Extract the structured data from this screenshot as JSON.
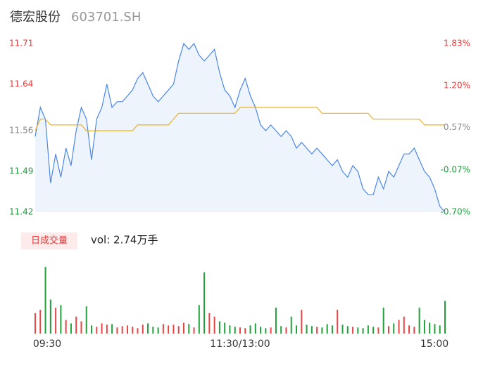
{
  "chart_data": {
    "type": "line",
    "title": "德宏股份",
    "subtitle": "603701.SH",
    "x": [
      0,
      3,
      6,
      9,
      12,
      15,
      18,
      21,
      24,
      27,
      30,
      33,
      36,
      39,
      42,
      45,
      48,
      51,
      54,
      57,
      60,
      63,
      66,
      69,
      72,
      75,
      78,
      81,
      84,
      87,
      90,
      93,
      96,
      99,
      102,
      105,
      108,
      111,
      114,
      117,
      120,
      123,
      126,
      129,
      132,
      135,
      138,
      141,
      144,
      147,
      150,
      153,
      156,
      159,
      162,
      165,
      168,
      171,
      174,
      177,
      180,
      183,
      186,
      189,
      192,
      195,
      198,
      201,
      204,
      207,
      210,
      213,
      216,
      219,
      222,
      225,
      228,
      231,
      234,
      237,
      240
    ],
    "xlim": [
      0,
      240
    ],
    "xticks": [
      {
        "value": 0,
        "label": "09:30"
      },
      {
        "value": 120,
        "label": "11:30/13:00"
      },
      {
        "value": 240,
        "label": "15:00"
      }
    ],
    "series": [
      {
        "color": "#4a86e8",
        "fill": "#eef4fc",
        "values": [
          11.55,
          11.6,
          11.58,
          11.47,
          11.52,
          11.48,
          11.53,
          11.5,
          11.56,
          11.6,
          11.58,
          11.51,
          11.58,
          11.6,
          11.64,
          11.6,
          11.61,
          11.61,
          11.62,
          11.63,
          11.65,
          11.66,
          11.64,
          11.62,
          11.61,
          11.62,
          11.63,
          11.64,
          11.68,
          11.71,
          11.7,
          11.71,
          11.69,
          11.68,
          11.69,
          11.7,
          11.66,
          11.63,
          11.62,
          11.6,
          11.63,
          11.65,
          11.62,
          11.6,
          11.57,
          11.56,
          11.57,
          11.56,
          11.55,
          11.56,
          11.55,
          11.53,
          11.54,
          11.53,
          11.52,
          11.53,
          11.52,
          11.51,
          11.5,
          11.51,
          11.49,
          11.48,
          11.5,
          11.49,
          11.46,
          11.45,
          11.45,
          11.48,
          11.46,
          11.49,
          11.48,
          11.5,
          11.52,
          11.52,
          11.53,
          11.51,
          11.49,
          11.48,
          11.46,
          11.43,
          11.42
        ]
      },
      {
        "color": "#f0b020",
        "values": [
          11.56,
          11.58,
          11.58,
          11.57,
          11.57,
          11.57,
          11.57,
          11.57,
          11.57,
          11.57,
          11.56,
          11.56,
          11.56,
          11.56,
          11.56,
          11.56,
          11.56,
          11.56,
          11.56,
          11.56,
          11.57,
          11.57,
          11.57,
          11.57,
          11.57,
          11.57,
          11.57,
          11.58,
          11.59,
          11.59,
          11.59,
          11.59,
          11.59,
          11.59,
          11.59,
          11.59,
          11.59,
          11.59,
          11.59,
          11.59,
          11.6,
          11.6,
          11.6,
          11.6,
          11.6,
          11.6,
          11.6,
          11.6,
          11.6,
          11.6,
          11.6,
          11.6,
          11.6,
          11.6,
          11.6,
          11.6,
          11.59,
          11.59,
          11.59,
          11.59,
          11.59,
          11.59,
          11.59,
          11.59,
          11.59,
          11.59,
          11.58,
          11.58,
          11.58,
          11.58,
          11.58,
          11.58,
          11.58,
          11.58,
          11.58,
          11.58,
          11.57,
          11.57,
          11.57,
          11.57,
          11.57
        ]
      }
    ],
    "ylim": [
      11.42,
      11.71
    ],
    "yticks": [
      11.71,
      11.64,
      11.56,
      11.49,
      11.42
    ],
    "ytick_colors": [
      "#e83838",
      "#e83838",
      "#888888",
      "#1a9e3a",
      "#1a9e3a"
    ],
    "y2lim": [
      -0.7,
      1.83
    ],
    "y2ticks": [
      {
        "value": 1.83,
        "label": "1.83%"
      },
      {
        "value": 1.2,
        "label": "1.20%"
      },
      {
        "value": 0.57,
        "label": "0.57%"
      },
      {
        "value": -0.07,
        "label": "-0.07%"
      },
      {
        "value": -0.7,
        "label": "-0.70%"
      }
    ],
    "volume": {
      "label": "日成交量",
      "summary": "vol: 2.74万手",
      "ylim": [
        0,
        1000
      ],
      "up_color": "#e84545",
      "down_color": "#22a03a",
      "values": [
        300,
        350,
        980,
        500,
        380,
        420,
        200,
        150,
        250,
        180,
        400,
        120,
        100,
        150,
        130,
        140,
        90,
        110,
        120,
        100,
        80,
        130,
        150,
        100,
        90,
        140,
        120,
        130,
        110,
        160,
        140,
        90,
        420,
        900,
        300,
        250,
        180,
        160,
        120,
        100,
        90,
        80,
        120,
        150,
        100,
        80,
        90,
        380,
        110,
        90,
        250,
        120,
        350,
        130,
        110,
        100,
        90,
        140,
        120,
        350,
        130,
        110,
        100,
        90,
        80,
        120,
        100,
        90,
        380,
        110,
        150,
        200,
        250,
        120,
        100,
        380,
        200,
        160,
        140,
        120,
        480
      ],
      "up": [
        true,
        true,
        false,
        false,
        true,
        false,
        true,
        false,
        true,
        true,
        false,
        false,
        true,
        true,
        true,
        false,
        true,
        true,
        true,
        true,
        true,
        true,
        false,
        false,
        false,
        true,
        true,
        true,
        true,
        true,
        false,
        true,
        false,
        false,
        true,
        true,
        false,
        false,
        false,
        false,
        true,
        true,
        false,
        false,
        false,
        false,
        true,
        false,
        false,
        true,
        false,
        false,
        true,
        false,
        false,
        true,
        false,
        false,
        false,
        true,
        false,
        false,
        true,
        false,
        false,
        false,
        false,
        true,
        false,
        true,
        false,
        true,
        true,
        true,
        true,
        false,
        false,
        false,
        false,
        false,
        false
      ]
    }
  }
}
